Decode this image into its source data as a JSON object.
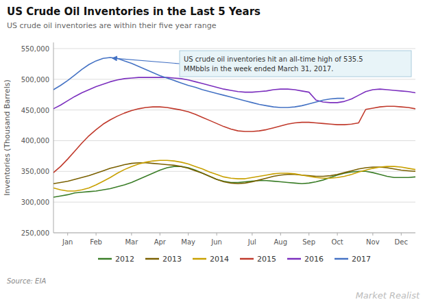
{
  "chart_data": {
    "type": "line",
    "title": "US Crude Oil Inventories in the Last 5 Years",
    "subtitle": "US crude oil inventories are within their five year range",
    "ylabel": "Inventories (Thousand Barrels)",
    "source": "Source: EIA",
    "watermark": "Market Realist",
    "annotation": "US crude oil inventories hit an all-time high of 535.5\nMMbbls in the week ended March 31, 2017.",
    "categories": [
      null,
      null,
      "Jan",
      null,
      null,
      null,
      "Feb",
      null,
      null,
      null,
      null,
      "Mar",
      null,
      null,
      null,
      "Apr",
      null,
      null,
      null,
      "May",
      null,
      null,
      null,
      "Jun",
      null,
      null,
      null,
      null,
      "Jul",
      null,
      null,
      null,
      "Aug",
      null,
      null,
      null,
      "Sep",
      null,
      null,
      null,
      "Oct",
      null,
      null,
      null,
      null,
      "Nov",
      null,
      null,
      null,
      "Dec",
      null,
      null
    ],
    "ylim": [
      250000,
      560000
    ],
    "yticks": [
      {
        "value": 250000,
        "label": "250,000"
      },
      {
        "value": 300000,
        "label": "300,000"
      },
      {
        "value": 350000,
        "label": "350,000"
      },
      {
        "value": 400000,
        "label": "400,000"
      },
      {
        "value": 450000,
        "label": "450,000"
      },
      {
        "value": 500000,
        "label": "500,000"
      },
      {
        "value": 550000,
        "label": "550,000"
      }
    ],
    "grid": true,
    "legend": "bottom",
    "series": [
      {
        "name": "2012",
        "color": "#3a7d27",
        "values": [
          308000,
          310000,
          312000,
          315000,
          316000,
          317000,
          318000,
          320000,
          322000,
          325000,
          328000,
          332000,
          337000,
          342000,
          347000,
          352000,
          356000,
          358000,
          358000,
          356000,
          352000,
          347000,
          342000,
          337000,
          334000,
          332000,
          332000,
          333000,
          334000,
          335000,
          335000,
          334000,
          333000,
          332000,
          331000,
          330000,
          331000,
          333000,
          336000,
          340000,
          344000,
          347000,
          349000,
          350000,
          350000,
          348000,
          345000,
          342000,
          340000,
          340000,
          340000,
          341000
        ]
      },
      {
        "name": "2013",
        "color": "#7a6000",
        "values": [
          330000,
          332000,
          334000,
          337000,
          340000,
          343000,
          347000,
          351000,
          355000,
          358000,
          361000,
          363000,
          364000,
          364000,
          363000,
          362000,
          361000,
          360000,
          358000,
          355000,
          351000,
          347000,
          342000,
          337000,
          333000,
          331000,
          330000,
          331000,
          333000,
          336000,
          339000,
          342000,
          344000,
          345000,
          345000,
          344000,
          343000,
          342000,
          342000,
          343000,
          345000,
          348000,
          351000,
          354000,
          356000,
          357000,
          357000,
          356000,
          354000,
          352000,
          351000,
          350000
        ]
      },
      {
        "name": "2014",
        "color": "#c8a000",
        "values": [
          323000,
          320000,
          318000,
          318000,
          320000,
          323000,
          328000,
          334000,
          340000,
          347000,
          353000,
          358000,
          362000,
          365000,
          367000,
          368000,
          368000,
          367000,
          365000,
          362000,
          358000,
          354000,
          349000,
          345000,
          341000,
          339000,
          338000,
          338000,
          340000,
          342000,
          344000,
          346000,
          347000,
          347000,
          346000,
          344000,
          342000,
          340000,
          339000,
          339000,
          340000,
          342000,
          345000,
          349000,
          352000,
          355000,
          357000,
          358000,
          358000,
          357000,
          355000,
          353000
        ]
      },
      {
        "name": "2015",
        "color": "#c0392b",
        "values": [
          348000,
          358000,
          370000,
          383000,
          396000,
          408000,
          418000,
          427000,
          434000,
          440000,
          445000,
          449000,
          452000,
          454000,
          455000,
          455000,
          454000,
          452000,
          450000,
          447000,
          443000,
          438000,
          433000,
          428000,
          423000,
          419000,
          416000,
          415000,
          415000,
          416000,
          418000,
          421000,
          424000,
          427000,
          429000,
          430000,
          430000,
          429000,
          428000,
          427000,
          426000,
          426000,
          427000,
          429000,
          451000,
          453000,
          455000,
          456000,
          456000,
          455000,
          454000,
          452000
        ]
      },
      {
        "name": "2016",
        "color": "#7b2fbe",
        "values": [
          452000,
          458000,
          465000,
          472000,
          478000,
          483000,
          488000,
          492000,
          496000,
          499000,
          501000,
          502000,
          503000,
          503000,
          503000,
          503000,
          503000,
          502000,
          501000,
          499000,
          496000,
          493000,
          490000,
          487000,
          484000,
          482000,
          480000,
          479000,
          479000,
          480000,
          481000,
          483000,
          484000,
          484000,
          483000,
          481000,
          479000,
          466000,
          463000,
          462000,
          462000,
          464000,
          468000,
          474000,
          480000,
          483000,
          484000,
          483000,
          482000,
          481000,
          480000,
          478000
        ]
      },
      {
        "name": "2017",
        "color": "#4472c4",
        "values": [
          483000,
          490000,
          498000,
          507000,
          516000,
          524000,
          530000,
          534000,
          535500,
          534000,
          530000,
          526000,
          521000,
          516000,
          511000,
          506000,
          502000,
          498000,
          494000,
          490000,
          487000,
          483000,
          480000,
          477000,
          474000,
          471000,
          468000,
          465000,
          462000,
          459000,
          457000,
          455000,
          454000,
          454000,
          455000,
          457000,
          460000,
          463000,
          466000,
          468000,
          469000,
          469000,
          null,
          null,
          null,
          null,
          null,
          null,
          null,
          null,
          null,
          null
        ]
      }
    ]
  }
}
